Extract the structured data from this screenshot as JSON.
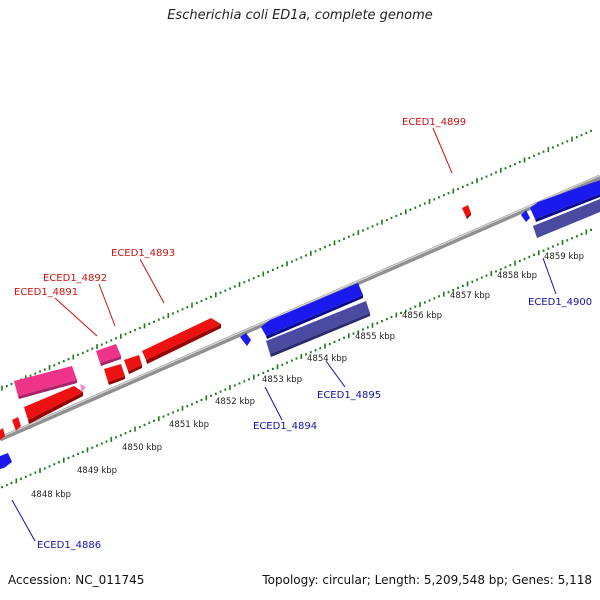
{
  "title": "Escherichia coli ED1a, complete genome",
  "accession": "Accession: NC_011745",
  "topology": "Topology: circular; Length: 5,209,548 bp; Genes: 5,118",
  "colors": {
    "forward_gene": "#ee1111",
    "forward_gene_alt": "#ee3388",
    "reverse_gene": "#1a1aee",
    "reverse_gene_alt": "#4a4aa0",
    "forward_label": "#cc1111",
    "reverse_label": "#1111aa",
    "tick": "#1a7a1a",
    "backbone": "#9a9a9a"
  },
  "scale_labels": [
    "4848 kbp",
    "4849 kbp",
    "4850 kbp",
    "4851 kbp",
    "4852 kbp",
    "4853 kbp",
    "4854 kbp",
    "4855 kbp",
    "4856 kbp",
    "4857 kbp",
    "4858 kbp",
    "4859 kbp"
  ],
  "forward_labels": [
    "ECED1_4891",
    "ECED1_4892",
    "ECED1_4893",
    "ECED1_4899"
  ],
  "reverse_labels": [
    "ECED1_4886",
    "ECED1_4894",
    "ECED1_4895",
    "ECED1_4900"
  ]
}
